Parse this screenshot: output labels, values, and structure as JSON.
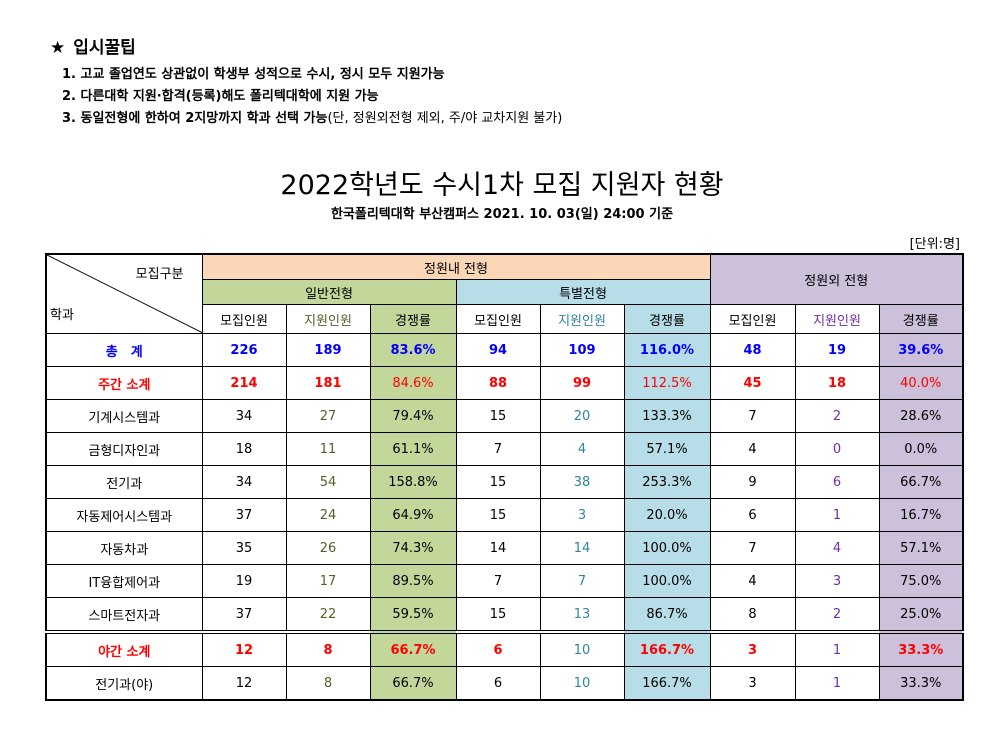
{
  "tips": {
    "star": "★",
    "title": "입시꿀팁",
    "items": [
      {
        "text": "1. 고교 졸업연도 상관없이 학생부 성적으로 수시, 정시 모두 지원가능",
        "note": ""
      },
      {
        "text": "2. 다른대학 지원·합격(등록)해도 폴리텍대학에 지원 가능",
        "note": ""
      },
      {
        "text": "3. 동일전형에 한하여 2지망까지 학과 선택 가능",
        "note": "(단, 정원외전형 제외, 주/야 교차지원 불가)"
      }
    ]
  },
  "title": "2022학년도 수시1차 모집 지원자 현황",
  "subtitle": "한국폴리텍대학 부산캠퍼스  2021. 10. 03(일) 24:00 기준",
  "unit": "[단위:명]",
  "header": {
    "corner_top": "모집구분",
    "corner_bottom": "학과",
    "within_quota": "정원내 전형",
    "general": "일반전형",
    "special": "특별전형",
    "outside_quota": "정원외 전형",
    "cols": [
      "모집인원",
      "지원인원",
      "경쟁률",
      "모집인원",
      "지원인원",
      "경쟁률",
      "모집인원",
      "지원인원",
      "경쟁률"
    ]
  },
  "rows": [
    {
      "name": "총　계",
      "style": "total",
      "values": [
        "226",
        "189",
        "83.6%",
        "94",
        "109",
        "116.0%",
        "48",
        "19",
        "39.6%"
      ]
    },
    {
      "name": "주간 소계",
      "style": "day",
      "values": [
        "214",
        "181",
        "84.6%",
        "88",
        "99",
        "112.5%",
        "45",
        "18",
        "40.0%"
      ]
    },
    {
      "name": "기계시스템과",
      "style": "dept",
      "values": [
        "34",
        "27",
        "79.4%",
        "15",
        "20",
        "133.3%",
        "7",
        "2",
        "28.6%"
      ]
    },
    {
      "name": "금형디자인과",
      "style": "dept",
      "values": [
        "18",
        "11",
        "61.1%",
        "7",
        "4",
        "57.1%",
        "4",
        "0",
        "0.0%"
      ]
    },
    {
      "name": "전기과",
      "style": "dept",
      "values": [
        "34",
        "54",
        "158.8%",
        "15",
        "38",
        "253.3%",
        "9",
        "6",
        "66.7%"
      ]
    },
    {
      "name": "자동제어시스템과",
      "style": "dept",
      "values": [
        "37",
        "24",
        "64.9%",
        "15",
        "3",
        "20.0%",
        "6",
        "1",
        "16.7%"
      ]
    },
    {
      "name": "자동차과",
      "style": "dept",
      "values": [
        "35",
        "26",
        "74.3%",
        "14",
        "14",
        "100.0%",
        "7",
        "4",
        "57.1%"
      ]
    },
    {
      "name": "IT융합제어과",
      "style": "dept",
      "values": [
        "19",
        "17",
        "89.5%",
        "7",
        "7",
        "100.0%",
        "4",
        "3",
        "75.0%"
      ]
    },
    {
      "name": "스마트전자과",
      "style": "dept",
      "values": [
        "37",
        "22",
        "59.5%",
        "15",
        "13",
        "86.7%",
        "8",
        "2",
        "25.0%"
      ]
    },
    {
      "name": "야간 소계",
      "style": "night",
      "values": [
        "12",
        "8",
        "66.7%",
        "6",
        "10",
        "166.7%",
        "3",
        "1",
        "33.3%"
      ]
    },
    {
      "name": "전기과(야)",
      "style": "dept",
      "values": [
        "12",
        "8",
        "66.7%",
        "6",
        "10",
        "166.7%",
        "3",
        "1",
        "33.3%"
      ]
    }
  ],
  "colors": {
    "peach": "#fbd7b8",
    "green": "#c4d79b",
    "blue": "#b7dee8",
    "lavender": "#ccc0da",
    "total_text": "#0000ff",
    "subtotal_text": "#ff0000"
  }
}
